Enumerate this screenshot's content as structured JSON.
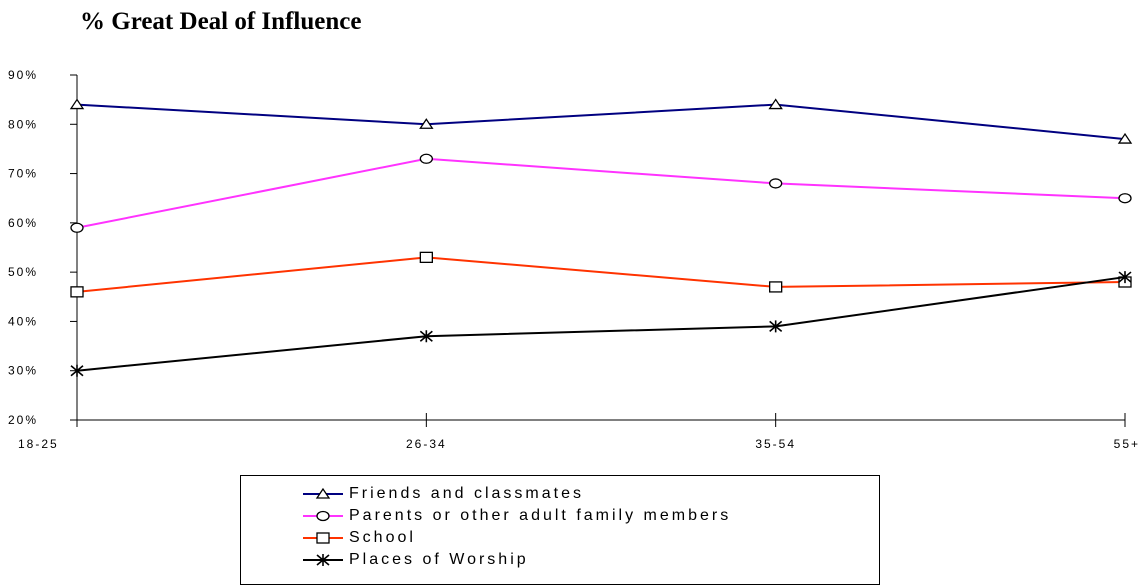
{
  "chart_data": {
    "type": "line",
    "title": "% Great Deal of Influence",
    "categories": [
      "18-25",
      "26-34",
      "35-54",
      "55+"
    ],
    "y_ticks": [
      "90%",
      "80%",
      "70%",
      "60%",
      "50%",
      "40%",
      "30%",
      "20%"
    ],
    "ylim": [
      20,
      90
    ],
    "grid": false,
    "legend_placement": "bottom",
    "series": [
      {
        "name": "Friends and classmates",
        "values": [
          84,
          80,
          84,
          77
        ],
        "color": "#000080",
        "marker": "triangle"
      },
      {
        "name": "Parents or other adult family members",
        "values": [
          59,
          73,
          68,
          65
        ],
        "color": "#ff33ff",
        "marker": "circle"
      },
      {
        "name": "School",
        "values": [
          46,
          53,
          47,
          48
        ],
        "color": "#ff3300",
        "marker": "square"
      },
      {
        "name": "Places of Worship",
        "values": [
          30,
          37,
          39,
          49
        ],
        "color": "#000000",
        "marker": "star"
      }
    ]
  }
}
